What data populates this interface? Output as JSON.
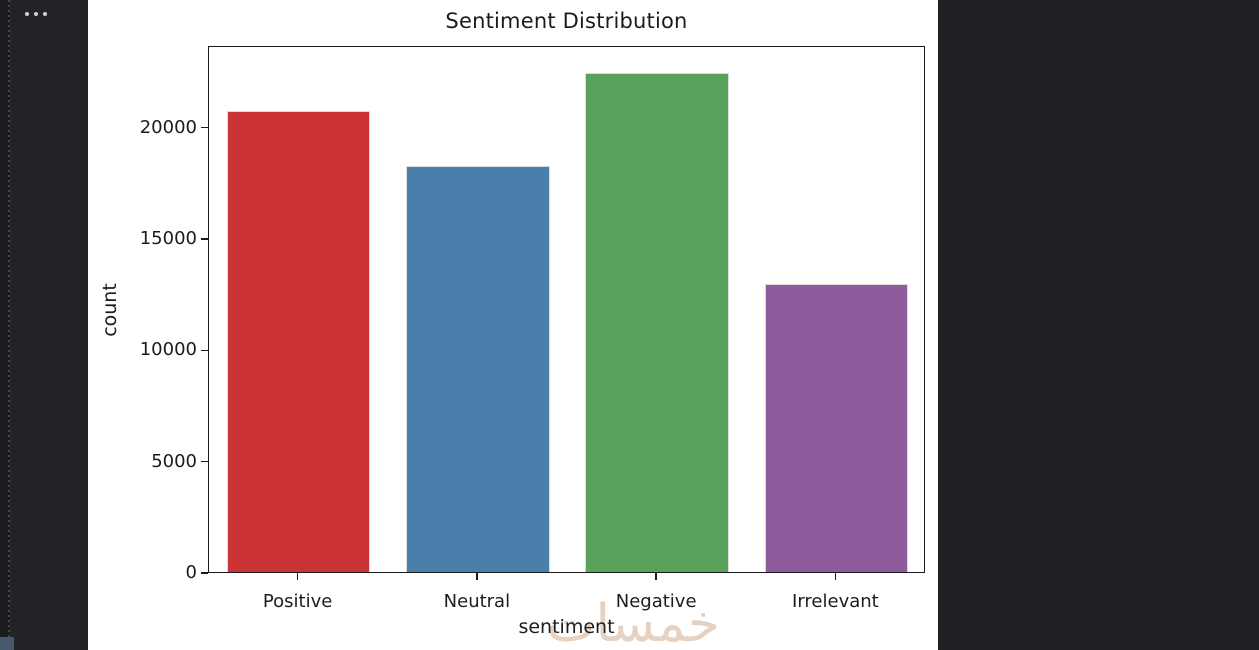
{
  "window": {
    "background": "#202124",
    "sidebar_background": "#222327"
  },
  "sidebar": {
    "more_options_icon": "ellipsis-icon",
    "divider_icon": "dotted-resize-handle"
  },
  "chart_data": {
    "type": "bar",
    "title": "Sentiment Distribution",
    "xlabel": "sentiment",
    "ylabel": "count",
    "categories": [
      "Positive",
      "Neutral",
      "Negative",
      "Irrelevant"
    ],
    "values": [
      20831,
      18318,
      22542,
      12990
    ],
    "bar_colors": [
      "#cb3335",
      "#4a7eab",
      "#59a25c",
      "#8e5a9b"
    ],
    "yticks": [
      0,
      5000,
      10000,
      15000,
      20000
    ],
    "ylim": [
      0,
      23669
    ],
    "grid": false,
    "legend": "none",
    "plot_background": "#ffffff"
  },
  "watermark": {
    "text": "خمسات",
    "color": "#e7d2c2"
  }
}
